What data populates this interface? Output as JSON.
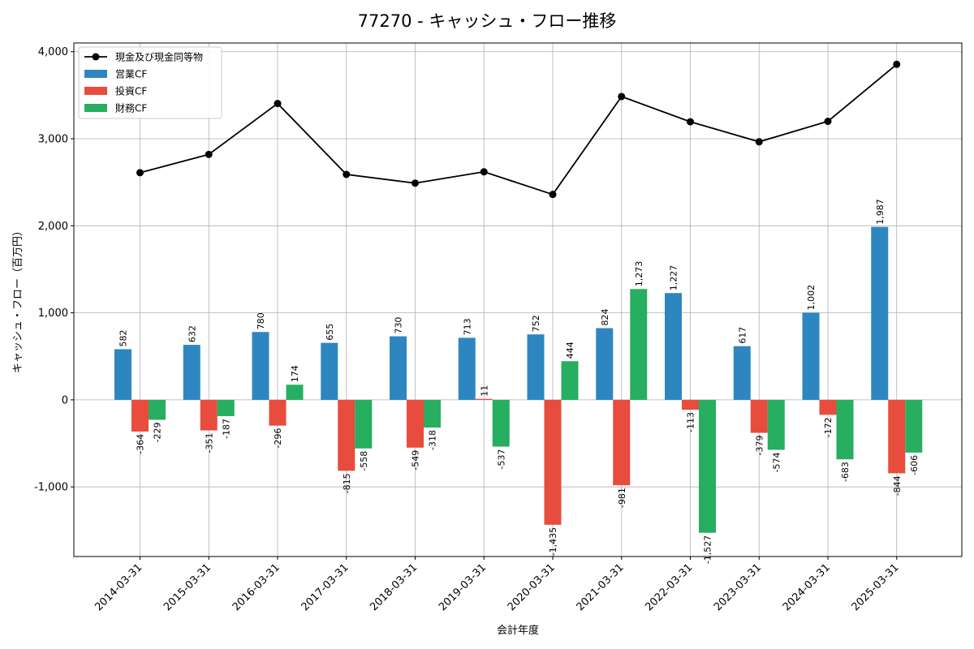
{
  "chart_data": {
    "type": "bar",
    "title": "77270 - キャッシュ・フロー推移",
    "xlabel": "会計年度",
    "ylabel": "キャッシュ・フロー（百万円）",
    "ylim": [
      -1800,
      4100
    ],
    "yticks": [
      -1000,
      0,
      1000,
      2000,
      3000,
      4000
    ],
    "ytick_labels": [
      "-1,000",
      "0",
      "1,000",
      "2,000",
      "3,000",
      "4,000"
    ],
    "grid": true,
    "legend_position": "top-left",
    "categories": [
      "2014-03-31",
      "2015-03-31",
      "2016-03-31",
      "2017-03-31",
      "2018-03-31",
      "2019-03-31",
      "2020-03-31",
      "2021-03-31",
      "2022-03-31",
      "2023-03-31",
      "2024-03-31",
      "2025-03-31"
    ],
    "series": [
      {
        "name": "営業CF",
        "kind": "bar",
        "color": "#2e86c1",
        "values": [
          582,
          632,
          780,
          655,
          730,
          713,
          752,
          824,
          1227,
          617,
          1002,
          1987
        ],
        "labels": [
          "582",
          "632",
          "780",
          "655",
          "730",
          "713",
          "752",
          "824",
          "1,227",
          "617",
          "1,002",
          "1,987"
        ]
      },
      {
        "name": "投資CF",
        "kind": "bar",
        "color": "#e74c3c",
        "values": [
          -364,
          -351,
          -296,
          -815,
          -549,
          11,
          -1435,
          -981,
          -113,
          -379,
          -172,
          -844
        ],
        "labels": [
          "-364",
          "-351",
          "-296",
          "-815",
          "-549",
          "11",
          "-1,435",
          "-981",
          "-113",
          "-379",
          "-172",
          "-844"
        ]
      },
      {
        "name": "財務CF",
        "kind": "bar",
        "color": "#27ae60",
        "values": [
          -229,
          -187,
          174,
          -558,
          -318,
          -537,
          444,
          1273,
          -1527,
          -574,
          -683,
          -606
        ],
        "labels": [
          "-229",
          "-187",
          "174",
          "-558",
          "-318",
          "-537",
          "444",
          "1,273",
          "-1,527",
          "-574",
          "-683",
          "-606"
        ]
      },
      {
        "name": "現金及び現金同等物",
        "kind": "line",
        "color": "#000000",
        "values": [
          2610,
          2820,
          3405,
          2590,
          2490,
          2620,
          2360,
          3485,
          3195,
          2965,
          3200,
          3855
        ]
      }
    ]
  }
}
